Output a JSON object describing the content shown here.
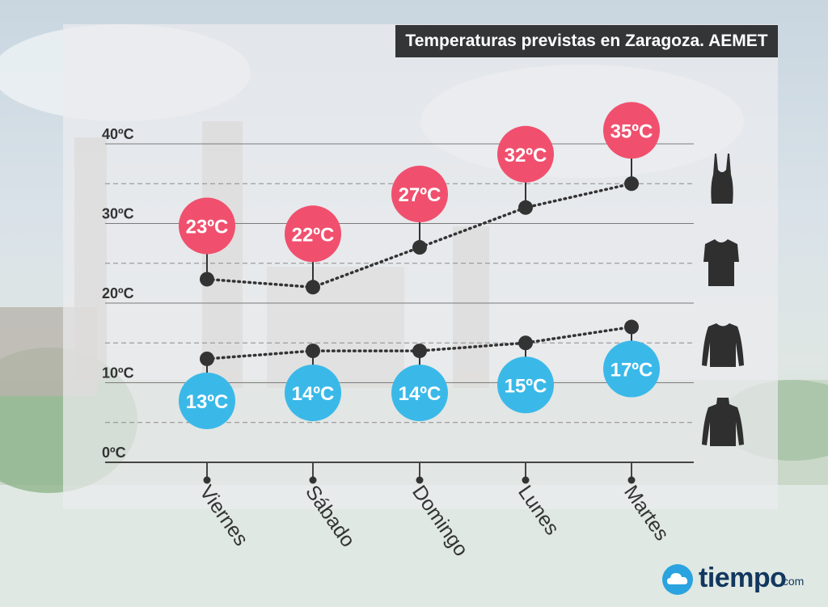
{
  "title": "Temperaturas previstas en Zaragoza. AEMET",
  "brand": {
    "name": "tiempo",
    "tld": ".com"
  },
  "colors": {
    "max_badge": "#f0506e",
    "min_badge": "#3ab9e9",
    "panel": "#ebecee",
    "title_bg": "#333537",
    "point": "#333333"
  },
  "clothing_icons": [
    "tank-top-icon",
    "t-shirt-icon",
    "long-sleeve-icon",
    "turtleneck-icon"
  ],
  "chart_data": {
    "type": "line",
    "title": "Temperaturas previstas en Zaragoza. AEMET",
    "xlabel": "",
    "ylabel": "",
    "categories": [
      "Viernes",
      "Sábado",
      "Domingo",
      "Lunes",
      "Martes"
    ],
    "series": [
      {
        "values": [
          23,
          22,
          27,
          32,
          35
        ],
        "labels": [
          "23ºC",
          "22ºC",
          "27ºC",
          "32ºC",
          "35ºC"
        ]
      },
      {
        "values": [
          13,
          14,
          14,
          15,
          17
        ],
        "labels": [
          "13ºC",
          "14ºC",
          "14ºC",
          "15ºC",
          "17ºC"
        ]
      }
    ],
    "yticks": [
      0,
      10,
      20,
      30,
      40
    ],
    "ytick_labels": [
      "0ºC",
      "10ºC",
      "20ºC",
      "30ºC",
      "40ºC"
    ],
    "ylim": [
      0,
      40
    ],
    "grid": true
  }
}
